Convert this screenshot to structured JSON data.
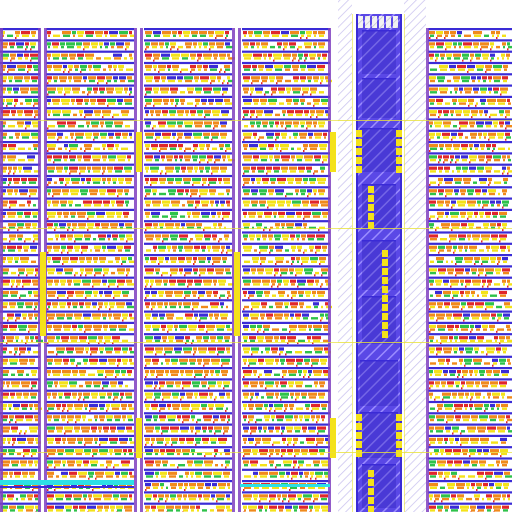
{
  "view": {
    "description_visible_text": "",
    "background": "#ffffff"
  },
  "layers": {
    "metal1": "#3a2bd6",
    "metal2": "#7f3fbf",
    "poly": "#e0262b",
    "diffusion": "#f08a1c",
    "via": "#f4e21a",
    "contact": "#2ec24a",
    "implant": "#2de0e6",
    "hatch": "#c7b7ff",
    "boundary": "#e8e23a"
  },
  "regions": {
    "left_array": {
      "columns": 4,
      "row_blocks": 45
    },
    "center_spine": {
      "cells": 9
    },
    "right_array": {
      "row_blocks": 45
    }
  }
}
